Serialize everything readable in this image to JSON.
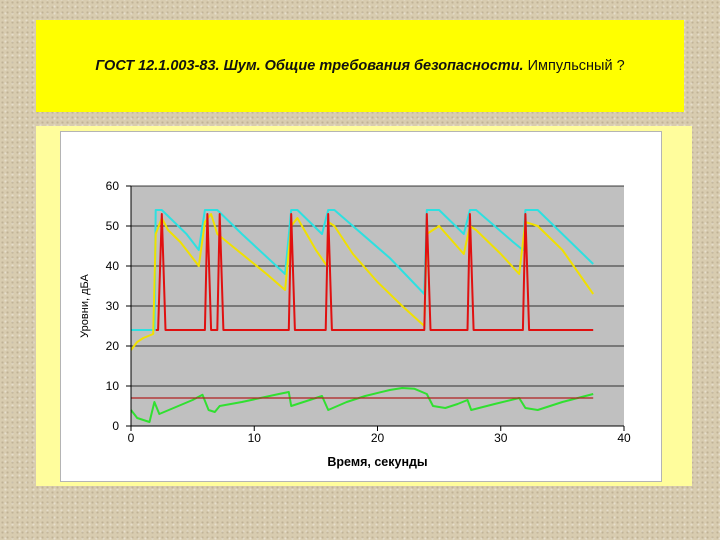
{
  "slide": {
    "title_bold": "ГОСТ 12.1.003-83. Шум. Общие требования безопасности.",
    "title_normal": " Импульсный ?"
  },
  "colors": {
    "background": "#d8ccb0",
    "title_box": "#ffff00",
    "panel": "#fffd9c",
    "plot_area": "#c0c0c0"
  },
  "chart_data": {
    "type": "line",
    "title": "",
    "xlabel": "Время, секунды",
    "ylabel": "Уровни, дБА",
    "xlim": [
      0,
      40
    ],
    "ylim": [
      0,
      60
    ],
    "x_ticks": [
      0,
      10,
      20,
      30,
      40
    ],
    "y_ticks": [
      0,
      10,
      20,
      30,
      40,
      50,
      60
    ],
    "grid": "horizontal",
    "legend": "none",
    "series": [
      {
        "color": "#2ee0e0",
        "points": [
          [
            0,
            24
          ],
          [
            1.5,
            24
          ],
          [
            1.9,
            24
          ],
          [
            2,
            54
          ],
          [
            2.5,
            54
          ],
          [
            4.5,
            48
          ],
          [
            5.5,
            44
          ],
          [
            6,
            54
          ],
          [
            6.5,
            54
          ],
          [
            7,
            54
          ],
          [
            9,
            48
          ],
          [
            12.5,
            38
          ],
          [
            13,
            54
          ],
          [
            13.5,
            54
          ],
          [
            15.5,
            48
          ],
          [
            16,
            54
          ],
          [
            16.5,
            54
          ],
          [
            21,
            42
          ],
          [
            23.8,
            33
          ],
          [
            24,
            54
          ],
          [
            25,
            54
          ],
          [
            27,
            48
          ],
          [
            27.5,
            54
          ],
          [
            28,
            54
          ],
          [
            31,
            46
          ],
          [
            31.8,
            44
          ],
          [
            32,
            54
          ],
          [
            33,
            54
          ],
          [
            37.5,
            40.5
          ]
        ]
      },
      {
        "color": "#f0e000",
        "points": [
          [
            0,
            19
          ],
          [
            0.5,
            21
          ],
          [
            1,
            22
          ],
          [
            1.8,
            23
          ],
          [
            2,
            48
          ],
          [
            2.5,
            52
          ],
          [
            3,
            49
          ],
          [
            4,
            46
          ],
          [
            5.5,
            40
          ],
          [
            6,
            51
          ],
          [
            6.5,
            53
          ],
          [
            7,
            48
          ],
          [
            9,
            43
          ],
          [
            11,
            38
          ],
          [
            12.5,
            34
          ],
          [
            13,
            50
          ],
          [
            13.5,
            52
          ],
          [
            15,
            44
          ],
          [
            15.9,
            40
          ],
          [
            16,
            51
          ],
          [
            16.5,
            50
          ],
          [
            18,
            43
          ],
          [
            20,
            36
          ],
          [
            22,
            30
          ],
          [
            23.8,
            25
          ],
          [
            24,
            48
          ],
          [
            25,
            50
          ],
          [
            27,
            43
          ],
          [
            27.5,
            50
          ],
          [
            28,
            49
          ],
          [
            30,
            43
          ],
          [
            31.5,
            38
          ],
          [
            32,
            51
          ],
          [
            33,
            50
          ],
          [
            35,
            44
          ],
          [
            37.5,
            33
          ]
        ]
      },
      {
        "color": "#e01010",
        "points": [
          [
            0.5,
            null
          ],
          [
            2,
            24
          ],
          [
            2.2,
            24
          ],
          [
            2.5,
            53
          ],
          [
            2.8,
            24
          ],
          [
            6,
            24
          ],
          [
            6.2,
            53
          ],
          [
            6.5,
            24
          ],
          [
            7,
            24
          ],
          [
            7.2,
            53
          ],
          [
            7.5,
            24
          ],
          [
            12.8,
            24
          ],
          [
            13,
            53
          ],
          [
            13.3,
            24
          ],
          [
            15.8,
            24
          ],
          [
            16,
            53
          ],
          [
            16.3,
            24
          ],
          [
            23.8,
            24
          ],
          [
            24,
            53
          ],
          [
            24.3,
            24
          ],
          [
            27.3,
            24
          ],
          [
            27.5,
            53
          ],
          [
            27.8,
            24
          ],
          [
            31.8,
            24
          ],
          [
            32,
            53
          ],
          [
            32.3,
            24
          ],
          [
            37.5,
            24
          ]
        ]
      },
      {
        "color": "#30e030",
        "points": [
          [
            0,
            4
          ],
          [
            0.5,
            2
          ],
          [
            1.5,
            1
          ],
          [
            1.9,
            6
          ],
          [
            2.3,
            3
          ],
          [
            5,
            6.5
          ],
          [
            5.8,
            7.8
          ],
          [
            6.3,
            4
          ],
          [
            6.8,
            3.5
          ],
          [
            7.2,
            5
          ],
          [
            9,
            6
          ],
          [
            12,
            8
          ],
          [
            12.8,
            8.5
          ],
          [
            13,
            5
          ],
          [
            14.5,
            6.5
          ],
          [
            15.5,
            7.5
          ],
          [
            16,
            4
          ],
          [
            17.5,
            6
          ],
          [
            19,
            7.5
          ],
          [
            21,
            9
          ],
          [
            22,
            9.5
          ],
          [
            23,
            9.3
          ],
          [
            24,
            8
          ],
          [
            24.5,
            5
          ],
          [
            25.5,
            4.5
          ],
          [
            26.5,
            5.5
          ],
          [
            27.3,
            6.5
          ],
          [
            27.6,
            4
          ],
          [
            29.5,
            5.5
          ],
          [
            31.5,
            7
          ],
          [
            32,
            4.5
          ],
          [
            33,
            4
          ],
          [
            35,
            6
          ],
          [
            37.5,
            8
          ]
        ]
      },
      {
        "color": "#b02020",
        "points": [
          [
            0,
            7
          ],
          [
            37.5,
            7
          ]
        ]
      }
    ]
  }
}
